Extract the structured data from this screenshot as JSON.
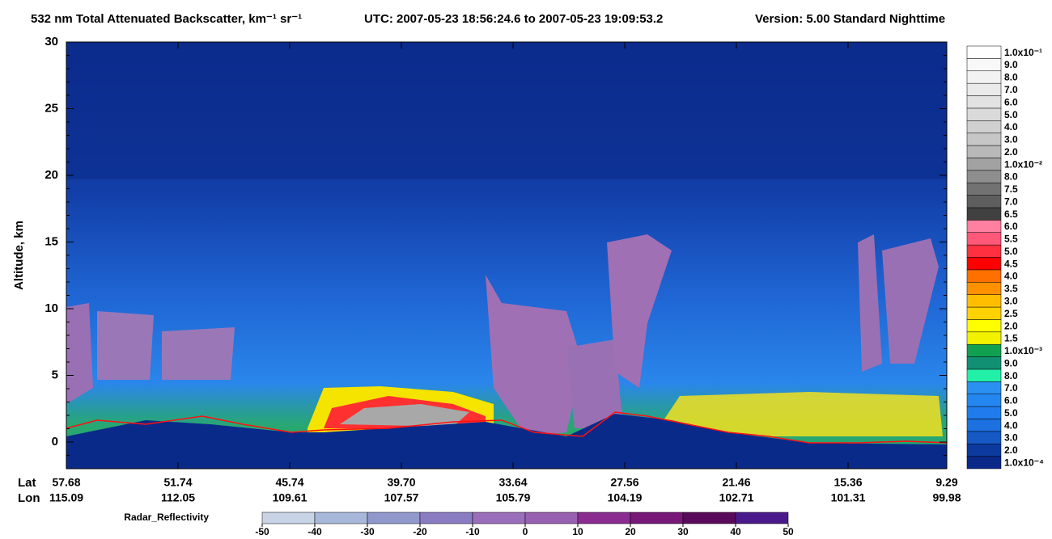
{
  "chart_data": {
    "type": "curtain",
    "title": "532 nm Total Attenuated Backscatter, km⁻¹ sr⁻¹",
    "time_range": "UTC:  2007-05-23 18:56:24.6  to  2007-05-23 19:09:53.2",
    "version": "Version: 5.00  Standard  Nighttime",
    "ylabel": "Altitude, km",
    "ylim": [
      -2,
      30
    ],
    "yticks": [
      0,
      5,
      10,
      15,
      20,
      25,
      30
    ],
    "lat_label": "Lat",
    "lon_label": "Lon",
    "lat": [
      "57.68",
      "51.74",
      "45.74",
      "39.70",
      "33.64",
      "27.56",
      "21.46",
      "15.36",
      "9.29"
    ],
    "lon": [
      "115.09",
      "112.05",
      "109.61",
      "107.57",
      "105.79",
      "104.19",
      "102.71",
      "101.31",
      "99.98"
    ],
    "colorbar": [
      {
        "label": "1.0x10⁻⁴",
        "color": "#0a2888"
      },
      {
        "label": "2.0",
        "color": "#0c3a9e"
      },
      {
        "label": "3.0",
        "color": "#1658c4"
      },
      {
        "label": "4.0",
        "color": "#1c70e0"
      },
      {
        "label": "5.0",
        "color": "#207ced"
      },
      {
        "label": "6.0",
        "color": "#2486f0"
      },
      {
        "label": "7.0",
        "color": "#2a90f2"
      },
      {
        "label": "8.0",
        "color": "#22f0a8"
      },
      {
        "label": "9.0",
        "color": "#129074"
      },
      {
        "label": "1.0x10⁻³",
        "color": "#10a050"
      },
      {
        "label": "1.5",
        "color": "#f2f200"
      },
      {
        "label": "2.0",
        "color": "#ffff00"
      },
      {
        "label": "2.5",
        "color": "#ffd200"
      },
      {
        "label": "3.0",
        "color": "#ffbe00"
      },
      {
        "label": "3.5",
        "color": "#ff9000"
      },
      {
        "label": "4.0",
        "color": "#ff7000"
      },
      {
        "label": "4.5",
        "color": "#ff0000"
      },
      {
        "label": "5.0",
        "color": "#ff3040"
      },
      {
        "label": "5.5",
        "color": "#ff5878"
      },
      {
        "label": "6.0",
        "color": "#ff80a0"
      },
      {
        "label": "6.5",
        "color": "#404040"
      },
      {
        "label": "7.0",
        "color": "#5e5e5e"
      },
      {
        "label": "7.5",
        "color": "#727272"
      },
      {
        "label": "8.0",
        "color": "#8e8e8e"
      },
      {
        "label": "1.0x10⁻²",
        "color": "#a2a2a2"
      },
      {
        "label": "2.0",
        "color": "#b8b8b8"
      },
      {
        "label": "3.0",
        "color": "#c6c6c6"
      },
      {
        "label": "4.0",
        "color": "#d0d0d0"
      },
      {
        "label": "5.0",
        "color": "#dadada"
      },
      {
        "label": "6.0",
        "color": "#e2e2e2"
      },
      {
        "label": "7.0",
        "color": "#eaeaea"
      },
      {
        "label": "8.0",
        "color": "#f2f2f2"
      },
      {
        "label": "9.0",
        "color": "#f8f8f8"
      },
      {
        "label": "1.0x10⁻¹",
        "color": "#ffffff"
      }
    ],
    "radar_label": "Radar_Reflectivity",
    "radar_ticks": [
      -50,
      -40,
      -30,
      -20,
      -10,
      0,
      10,
      20,
      30,
      40,
      50
    ],
    "radar_colors": [
      "#c8d4e6",
      "#a8b8da",
      "#9098cc",
      "#8a7cc2",
      "#9a6eba",
      "#9860b0",
      "#8a2c90",
      "#781878",
      "#5a0a5a",
      "#4a1a8c"
    ]
  }
}
